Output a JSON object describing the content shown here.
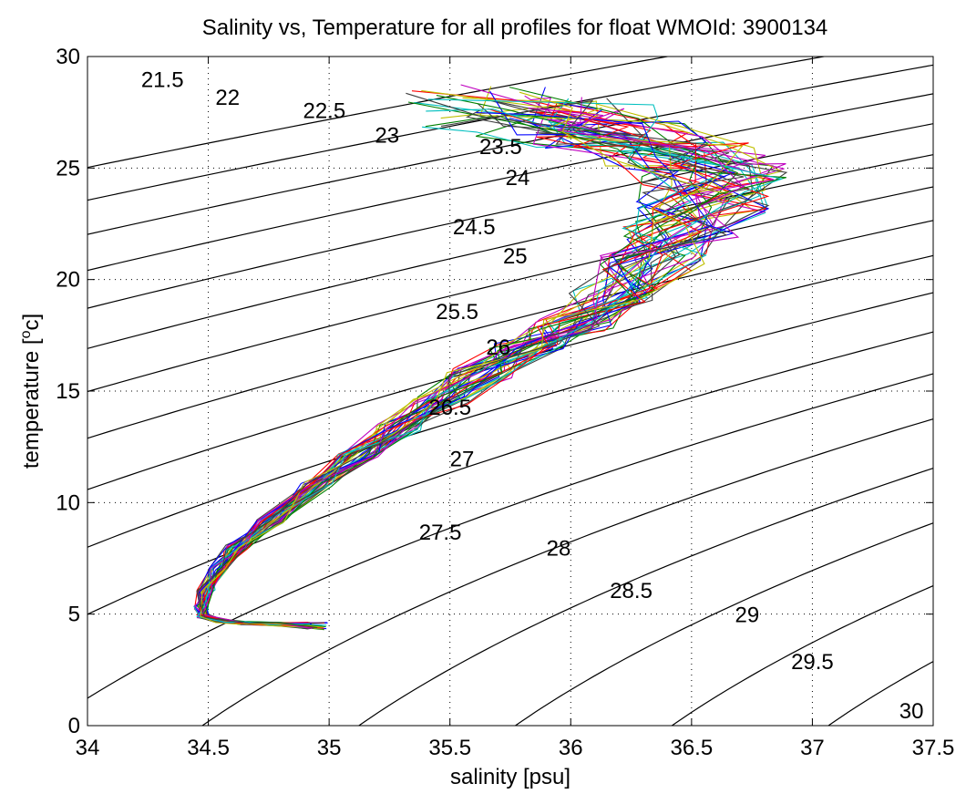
{
  "chart_data": {
    "type": "line",
    "title": "Salinity vs, Temperature for all profiles for float WMOId: 3900134",
    "xlabel": "salinity [psu]",
    "ylabel_main": "temperature [",
    "ylabel_sup": "o",
    "ylabel_end": "c]",
    "xlim": [
      34,
      37.5
    ],
    "ylim": [
      0,
      30
    ],
    "xticks": [
      34,
      34.5,
      35,
      35.5,
      36,
      36.5,
      37,
      37.5
    ],
    "xtick_labels": [
      "34",
      "34.5",
      "35",
      "35.5",
      "36",
      "36.5",
      "37",
      "37.5"
    ],
    "yticks": [
      0,
      5,
      10,
      15,
      20,
      25,
      30
    ],
    "ytick_labels": [
      "0",
      "5",
      "10",
      "15",
      "20",
      "25",
      "30"
    ],
    "grid": true,
    "density_contours": {
      "levels": [
        21.5,
        22,
        22.5,
        23,
        23.5,
        24,
        24.5,
        25,
        25.5,
        26,
        26.5,
        27,
        27.5,
        28,
        28.5,
        29,
        29.5,
        30
      ],
      "labels": [
        "21.5",
        "22",
        "22.5",
        "23",
        "23.5",
        "24",
        "24.5",
        "25",
        "25.5",
        "26",
        "26.5",
        "27",
        "27.5",
        "28",
        "28.5",
        "29",
        "29.5",
        "30"
      ],
      "label_positions": [
        {
          "s": 34.31,
          "t": 29.0
        },
        {
          "s": 34.58,
          "t": 28.2
        },
        {
          "s": 34.98,
          "t": 27.6
        },
        {
          "s": 35.24,
          "t": 26.5
        },
        {
          "s": 35.71,
          "t": 26.0
        },
        {
          "s": 35.78,
          "t": 24.6
        },
        {
          "s": 35.6,
          "t": 22.4
        },
        {
          "s": 35.77,
          "t": 21.1
        },
        {
          "s": 35.53,
          "t": 18.6
        },
        {
          "s": 35.7,
          "t": 17.0
        },
        {
          "s": 35.5,
          "t": 14.3
        },
        {
          "s": 35.55,
          "t": 12.0
        },
        {
          "s": 35.46,
          "t": 8.7
        },
        {
          "s": 35.95,
          "t": 8.0
        },
        {
          "s": 36.25,
          "t": 6.1
        },
        {
          "s": 36.73,
          "t": 5.0
        },
        {
          "s": 37.0,
          "t": 2.9
        },
        {
          "s": 37.41,
          "t": 0.7
        }
      ]
    },
    "profile_colors": [
      "#0000ff",
      "#008000",
      "#ff0000",
      "#00bfbf",
      "#bf00bf",
      "#bfbf00",
      "#404040"
    ],
    "profile_count": 42,
    "mean_profile": {
      "salinity": [
        34.88,
        34.78,
        34.65,
        34.55,
        34.48,
        34.47,
        34.49,
        34.54,
        34.62,
        34.76,
        34.95,
        35.12,
        35.3,
        35.46,
        35.62,
        35.82,
        36.0,
        36.18,
        36.34,
        36.45,
        36.55,
        36.6,
        36.48,
        36.2,
        35.95,
        35.75
      ],
      "temperature": [
        4.5,
        4.55,
        4.6,
        4.7,
        4.9,
        5.3,
        6.0,
        7.0,
        8.0,
        9.2,
        10.8,
        12.1,
        13.4,
        14.6,
        15.8,
        17.0,
        18.0,
        19.3,
        20.8,
        22.2,
        23.5,
        24.6,
        25.6,
        26.5,
        27.3,
        27.8
      ]
    }
  }
}
